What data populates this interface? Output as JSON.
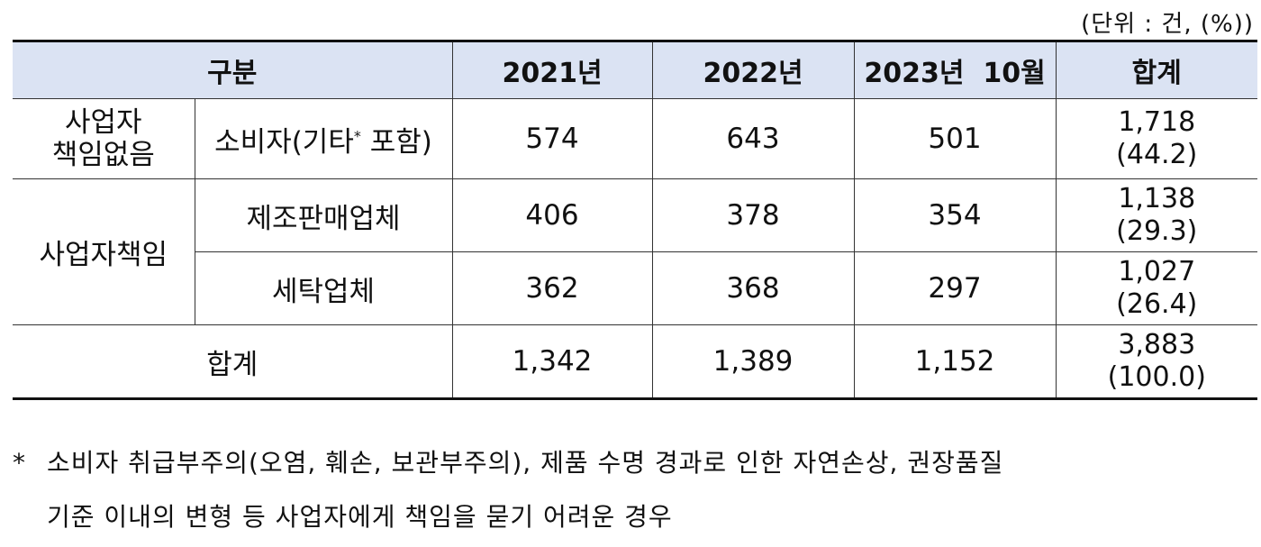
{
  "unit_label": "(단위 : 건, (%))",
  "header": {
    "category": "구분",
    "y2021": "2021년",
    "y2022": "2022년",
    "y2023": "2023년  10월",
    "total": "합계"
  },
  "rows": [
    {
      "group_line1": "사업자",
      "group_line2": "책임없음",
      "sub_main": "소비자(기타",
      "sub_sup": "*",
      "sub_tail": " 포함)",
      "v2021": "574",
      "v2022": "643",
      "v2023": "501",
      "total": "1,718",
      "pct": "(44.2)"
    },
    {
      "group": "사업자책임",
      "sub": "제조판매업체",
      "v2021": "406",
      "v2022": "378",
      "v2023": "354",
      "total": "1,138",
      "pct": "(29.3)"
    },
    {
      "sub": "세탁업체",
      "v2021": "362",
      "v2022": "368",
      "v2023": "297",
      "total": "1,027",
      "pct": "(26.4)"
    }
  ],
  "total_row": {
    "label": "합계",
    "v2021": "1,342",
    "v2022": "1,389",
    "v2023": "1,152",
    "total": "3,883",
    "pct": "(100.0)"
  },
  "footnote": {
    "marker": "*",
    "line1": "소비자 취급부주의(오염, 훼손, 보관부주의), 제품 수명 경과로 인한 자연손상, 권장품질",
    "line2": "기준 이내의 변형 등 사업자에게 책임을 묻기 어려운 경우"
  }
}
